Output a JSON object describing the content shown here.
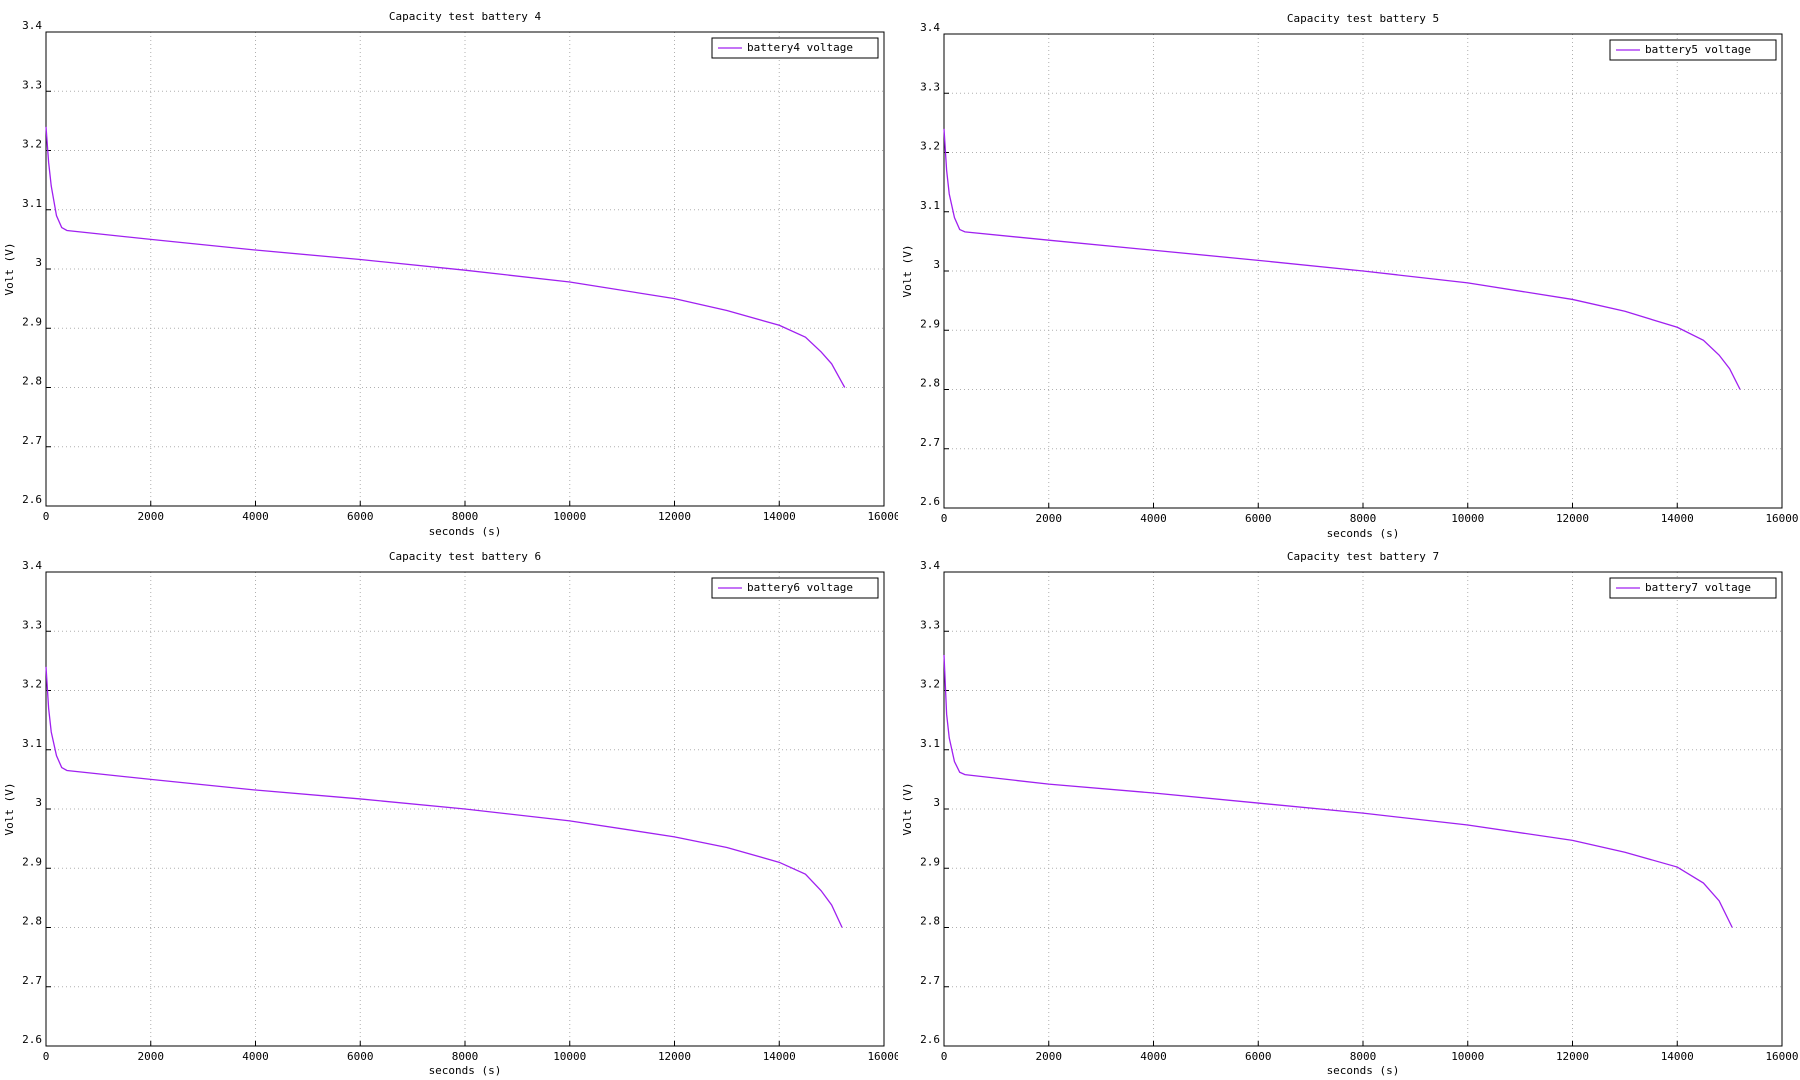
{
  "chart_data": [
    {
      "type": "line",
      "title": "Capacity test battery 4",
      "xlabel": "seconds (s)",
      "ylabel": "Volt (V)",
      "xlim": [
        0,
        16000
      ],
      "xticks": [
        0,
        2000,
        4000,
        6000,
        8000,
        10000,
        12000,
        14000,
        16000
      ],
      "ylim": [
        2.6,
        3.4
      ],
      "yticks": [
        2.6,
        2.7,
        2.8,
        2.9,
        3,
        3.1,
        3.2,
        3.3,
        3.4
      ],
      "grid": true,
      "legend": "upper right",
      "x": [
        0,
        50,
        100,
        200,
        300,
        400,
        2000,
        4000,
        6000,
        8000,
        10000,
        12000,
        13000,
        14000,
        14500,
        14800,
        15000,
        15250
      ],
      "series": [
        {
          "name": "battery4 voltage",
          "color": "#a020f0",
          "values": [
            3.24,
            3.18,
            3.14,
            3.09,
            3.07,
            3.065,
            3.05,
            3.032,
            3.016,
            2.998,
            2.978,
            2.95,
            2.93,
            2.905,
            2.885,
            2.86,
            2.84,
            2.8
          ]
        }
      ]
    },
    {
      "type": "line",
      "title": "Capacity test battery 5",
      "xlabel": "seconds (s)",
      "ylabel": "Volt (V)",
      "xlim": [
        0,
        16000
      ],
      "xticks": [
        0,
        2000,
        4000,
        6000,
        8000,
        10000,
        12000,
        14000,
        16000
      ],
      "ylim": [
        2.6,
        3.4
      ],
      "yticks": [
        2.6,
        2.7,
        2.8,
        2.9,
        3,
        3.1,
        3.2,
        3.3,
        3.4
      ],
      "grid": true,
      "legend": "upper right",
      "x": [
        0,
        50,
        100,
        200,
        300,
        400,
        2000,
        4000,
        6000,
        8000,
        10000,
        12000,
        13000,
        14000,
        14500,
        14800,
        15000,
        15200
      ],
      "series": [
        {
          "name": "battery5 voltage",
          "color": "#a020f0",
          "values": [
            3.24,
            3.17,
            3.13,
            3.09,
            3.07,
            3.066,
            3.052,
            3.035,
            3.018,
            3.0,
            2.98,
            2.952,
            2.932,
            2.905,
            2.883,
            2.858,
            2.835,
            2.8
          ]
        }
      ]
    },
    {
      "type": "line",
      "title": "Capacity test battery 6",
      "xlabel": "seconds (s)",
      "ylabel": "Volt (V)",
      "xlim": [
        0,
        16000
      ],
      "xticks": [
        0,
        2000,
        4000,
        6000,
        8000,
        10000,
        12000,
        14000,
        16000
      ],
      "ylim": [
        2.6,
        3.4
      ],
      "yticks": [
        2.6,
        2.7,
        2.8,
        2.9,
        3,
        3.1,
        3.2,
        3.3,
        3.4
      ],
      "grid": true,
      "legend": "upper right",
      "x": [
        0,
        50,
        100,
        200,
        300,
        400,
        2000,
        4000,
        6000,
        8000,
        10000,
        12000,
        13000,
        14000,
        14500,
        14800,
        15000,
        15200
      ],
      "series": [
        {
          "name": "battery6 voltage",
          "color": "#a020f0",
          "values": [
            3.24,
            3.17,
            3.13,
            3.09,
            3.07,
            3.065,
            3.05,
            3.032,
            3.017,
            3.0,
            2.98,
            2.953,
            2.935,
            2.91,
            2.89,
            2.862,
            2.838,
            2.8
          ]
        }
      ]
    },
    {
      "type": "line",
      "title": "Capacity test battery 7",
      "xlabel": "seconds (s)",
      "ylabel": "Volt (V)",
      "xlim": [
        0,
        16000
      ],
      "xticks": [
        0,
        2000,
        4000,
        6000,
        8000,
        10000,
        12000,
        14000,
        16000
      ],
      "ylim": [
        2.6,
        3.4
      ],
      "yticks": [
        2.6,
        2.7,
        2.8,
        2.9,
        3,
        3.1,
        3.2,
        3.3,
        3.4
      ],
      "grid": true,
      "legend": "upper right",
      "x": [
        0,
        50,
        100,
        200,
        300,
        400,
        2000,
        4000,
        6000,
        8000,
        10000,
        12000,
        13000,
        14000,
        14500,
        14800,
        15050
      ],
      "series": [
        {
          "name": "battery7 voltage",
          "color": "#a020f0",
          "values": [
            3.26,
            3.16,
            3.12,
            3.08,
            3.062,
            3.058,
            3.042,
            3.027,
            3.01,
            2.993,
            2.973,
            2.947,
            2.927,
            2.902,
            2.875,
            2.845,
            2.8
          ]
        }
      ]
    }
  ]
}
